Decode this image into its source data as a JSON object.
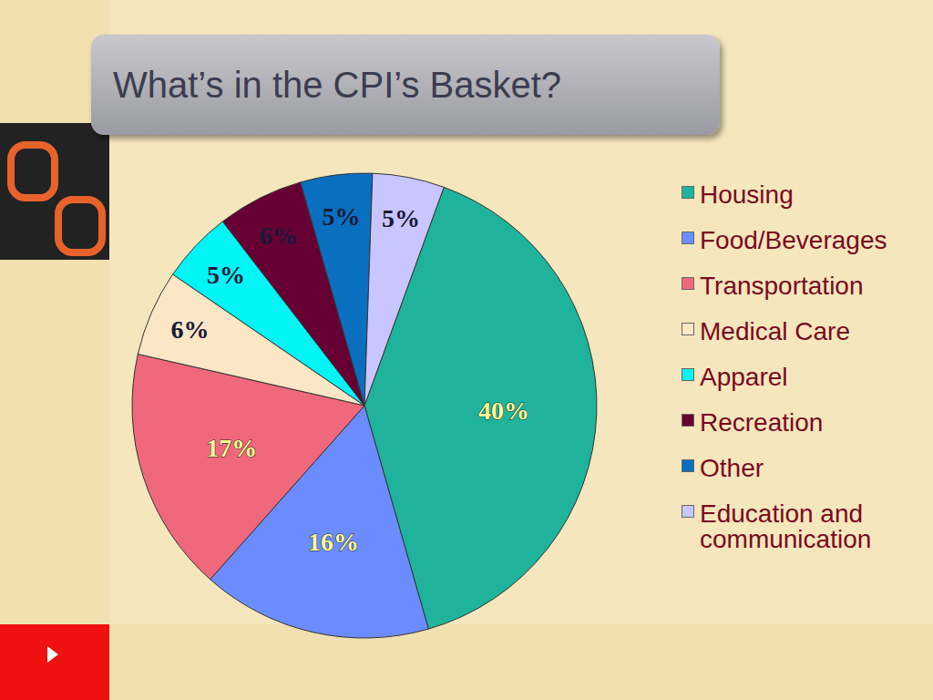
{
  "chart_data": {
    "type": "pie",
    "title": "What’s in the CPI’s Basket?",
    "categories": [
      "Housing",
      "Food/Beverages",
      "Transportation",
      "Medical Care",
      "Apparel",
      "Recreation",
      "Other",
      "Education and communication"
    ],
    "values": [
      40,
      16,
      17,
      6,
      5,
      6,
      5,
      5
    ],
    "value_labels": [
      "40%",
      "16%",
      "17%",
      "6%",
      "5%",
      "6%",
      "5%",
      "5%"
    ],
    "colors": [
      "#1fb39c",
      "#6b8cff",
      "#f0687c",
      "#fbe6c6",
      "#00f5f5",
      "#660033",
      "#0a6fbf",
      "#c9c6ff"
    ],
    "data_labels": true,
    "legend": "right"
  }
}
